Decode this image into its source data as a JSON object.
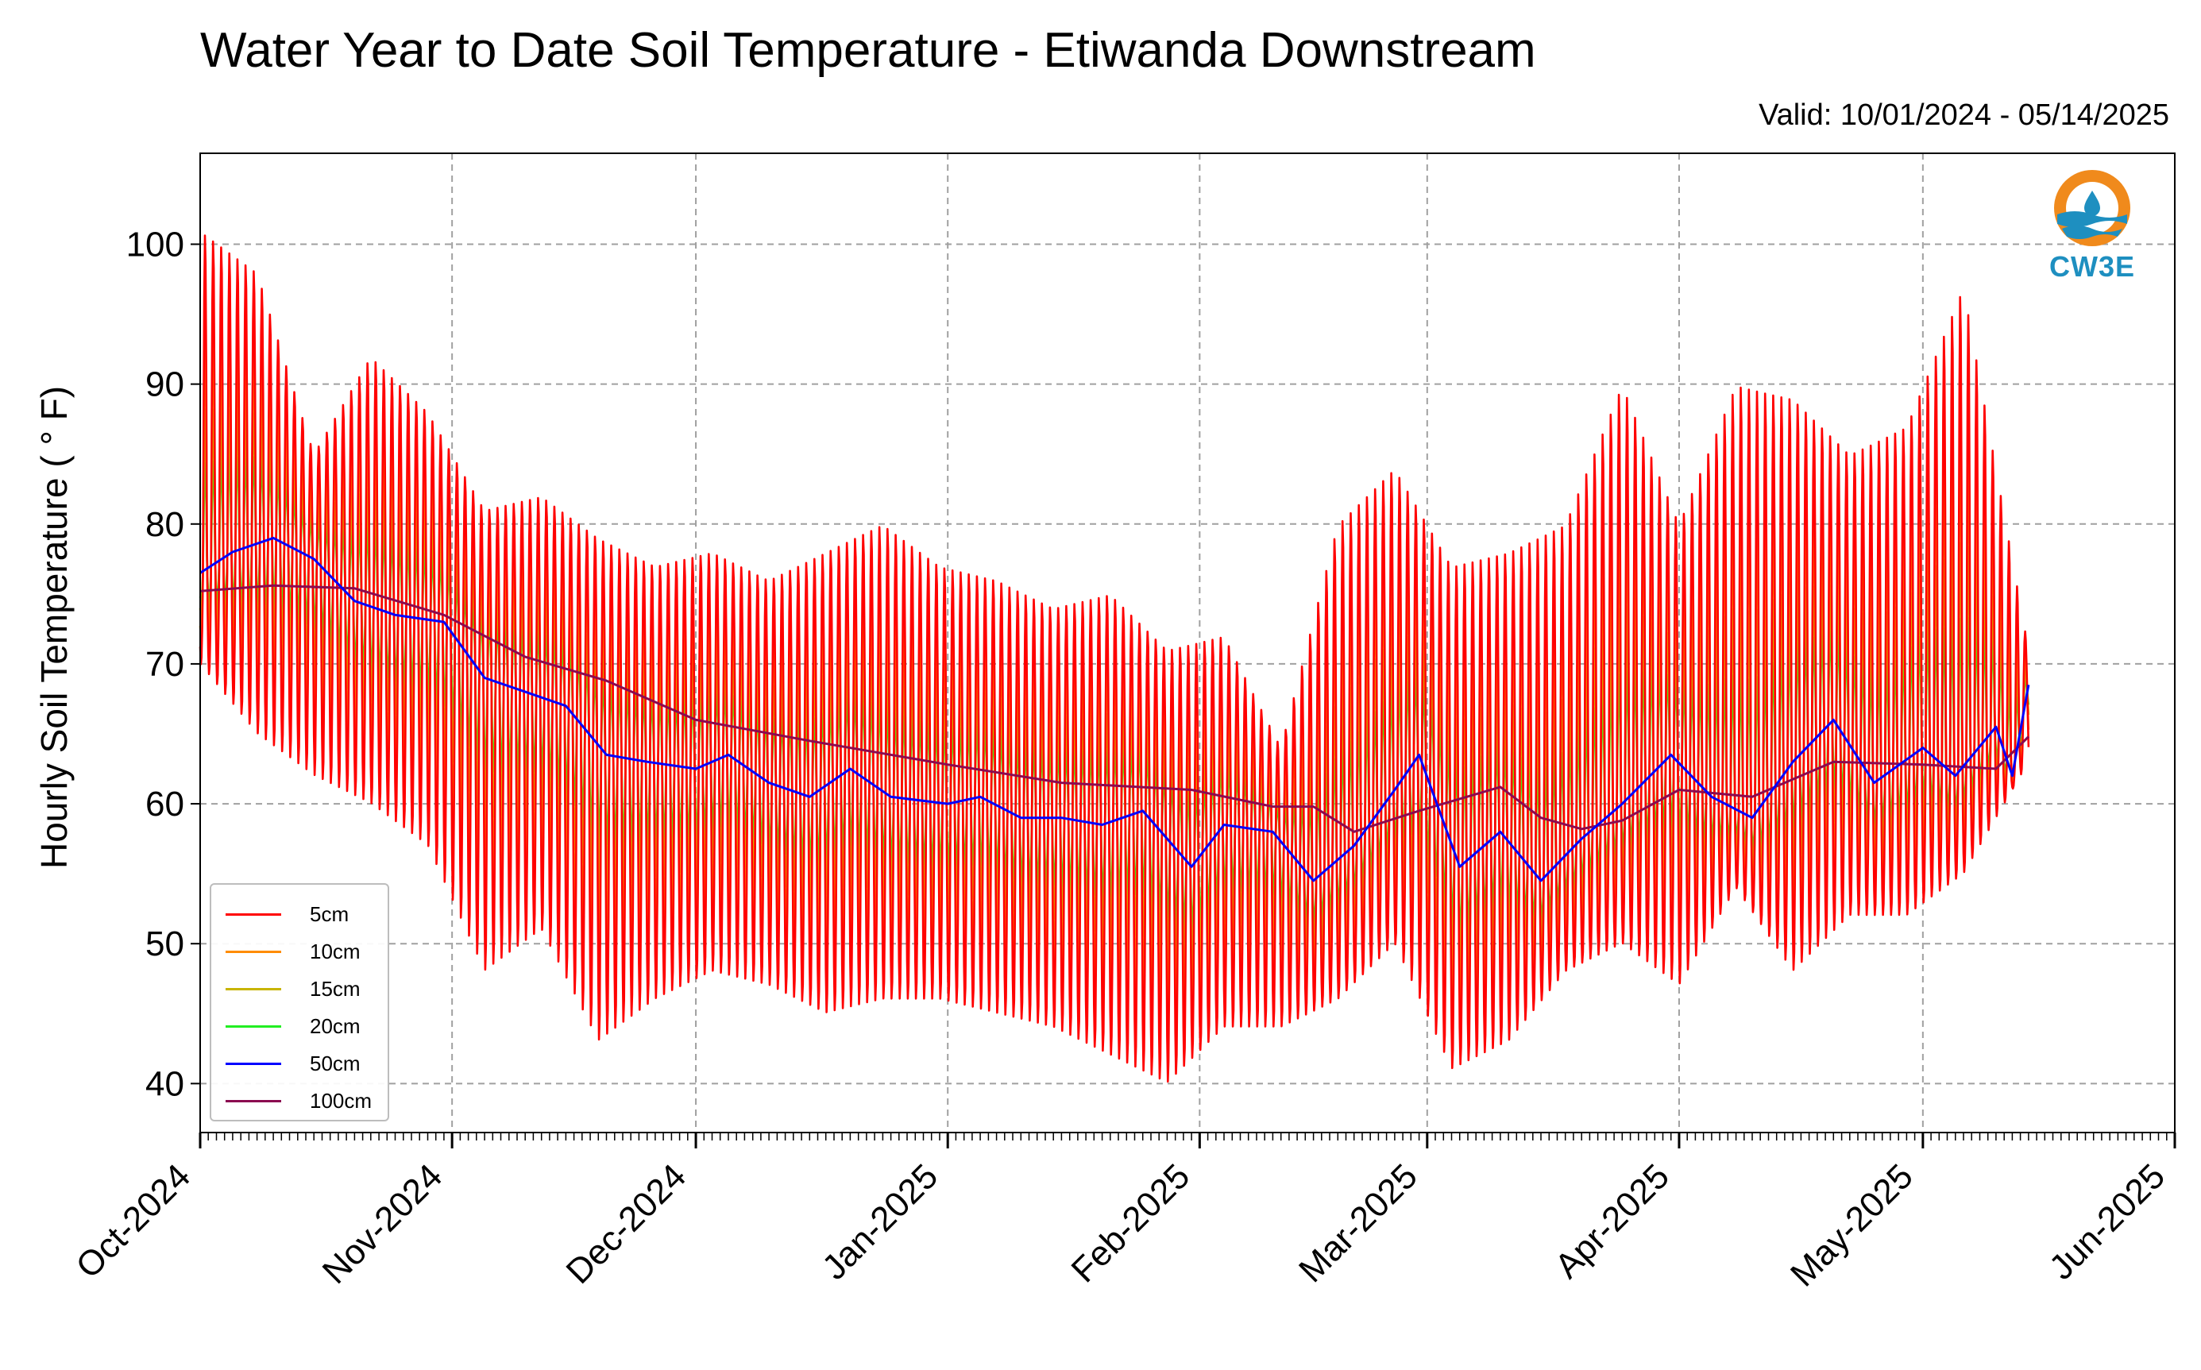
{
  "title": "Water Year to Date Soil Temperature - Etiwanda Downstream",
  "valid_text": "Valid: 10/01/2024 - 05/14/2025",
  "logo": {
    "text": "CW3E",
    "icon": "cw3e-logo-icon"
  },
  "chart_data": {
    "type": "line",
    "title": "Water Year to Date Soil Temperature - Etiwanda Downstream",
    "xlabel": "",
    "ylabel": "Hourly Soil Temperature ( ° F)",
    "x_axis": "date",
    "xlim": [
      "2024-10-01",
      "2025-06-01"
    ],
    "ylim": [
      36.5,
      106.5
    ],
    "yticks": [
      40,
      50,
      60,
      70,
      80,
      90,
      100
    ],
    "xticks": [
      {
        "date": "2024-10-01",
        "label": "Oct-2024"
      },
      {
        "date": "2024-11-01",
        "label": "Nov-2024"
      },
      {
        "date": "2024-12-01",
        "label": "Dec-2024"
      },
      {
        "date": "2025-01-01",
        "label": "Jan-2025"
      },
      {
        "date": "2025-02-01",
        "label": "Feb-2025"
      },
      {
        "date": "2025-03-01",
        "label": "Mar-2025"
      },
      {
        "date": "2025-04-01",
        "label": "Apr-2025"
      },
      {
        "date": "2025-05-01",
        "label": "May-2025"
      },
      {
        "date": "2025-06-01",
        "label": "Jun-2025"
      }
    ],
    "grid": true,
    "legend_position": "lower-left",
    "diurnal_envelope": {
      "dates": [
        "2024-10-01",
        "2024-10-08",
        "2024-10-15",
        "2024-10-22",
        "2024-10-29",
        "2024-11-05",
        "2024-11-12",
        "2024-11-19",
        "2024-11-26",
        "2024-12-03",
        "2024-12-10",
        "2024-12-17",
        "2024-12-24",
        "2024-12-31",
        "2025-01-07",
        "2025-01-14",
        "2025-01-21",
        "2025-01-28",
        "2025-02-04",
        "2025-02-11",
        "2025-02-18",
        "2025-02-25",
        "2025-03-04",
        "2025-03-11",
        "2025-03-18",
        "2025-03-25",
        "2025-04-01",
        "2025-04-08",
        "2025-04-15",
        "2025-04-22",
        "2025-04-29",
        "2025-05-06",
        "2025-05-14"
      ],
      "daily_max_5cm": [
        101,
        98,
        85,
        92,
        88,
        81,
        82,
        79,
        77,
        78,
        76,
        78,
        80,
        77,
        76,
        74,
        75,
        71,
        72,
        64,
        80,
        84,
        77,
        78,
        80,
        90,
        80,
        90,
        89,
        85,
        87,
        97,
        71
      ],
      "daily_min_5cm": [
        70,
        65,
        62,
        60,
        57,
        48,
        51,
        43,
        46,
        48,
        47,
        45,
        46,
        46,
        45,
        44,
        42,
        40,
        44,
        44,
        46,
        50,
        41,
        43,
        48,
        50,
        47,
        54,
        48,
        52,
        52,
        55,
        63
      ]
    },
    "series": [
      {
        "name": "5cm",
        "color": "#ff0000",
        "diurnal_fraction": 1.0
      },
      {
        "name": "10cm",
        "color": "#ff8c00",
        "diurnal_fraction": 0.72
      },
      {
        "name": "15cm",
        "color": "#c8b400",
        "diurnal_fraction": 0.48
      },
      {
        "name": "20cm",
        "color": "#22ee22",
        "diurnal_fraction": 0.32
      },
      {
        "name": "50cm",
        "color": "#0000ff",
        "x": [
          "2024-10-01",
          "2024-10-05",
          "2024-10-10",
          "2024-10-15",
          "2024-10-20",
          "2024-10-25",
          "2024-10-31",
          "2024-11-05",
          "2024-11-10",
          "2024-11-15",
          "2024-11-20",
          "2024-11-25",
          "2024-12-01",
          "2024-12-05",
          "2024-12-10",
          "2024-12-15",
          "2024-12-20",
          "2024-12-25",
          "2025-01-01",
          "2025-01-05",
          "2025-01-10",
          "2025-01-15",
          "2025-01-20",
          "2025-01-25",
          "2025-01-31",
          "2025-02-04",
          "2025-02-10",
          "2025-02-15",
          "2025-02-20",
          "2025-02-25",
          "2025-02-28",
          "2025-03-05",
          "2025-03-10",
          "2025-03-15",
          "2025-03-20",
          "2025-03-25",
          "2025-03-31",
          "2025-04-05",
          "2025-04-10",
          "2025-04-15",
          "2025-04-20",
          "2025-04-25",
          "2025-05-01",
          "2025-05-05",
          "2025-05-10",
          "2025-05-12",
          "2025-05-14"
        ],
        "y": [
          76.5,
          78.0,
          79.0,
          77.5,
          74.5,
          73.5,
          73.0,
          69.0,
          68.0,
          67.0,
          63.5,
          63.0,
          62.5,
          63.5,
          61.5,
          60.5,
          62.5,
          60.5,
          60.0,
          60.5,
          59.0,
          59.0,
          58.5,
          59.5,
          55.5,
          58.5,
          58.0,
          54.5,
          57.0,
          61.0,
          63.5,
          55.5,
          58.0,
          54.5,
          57.5,
          60.0,
          63.5,
          60.5,
          59.0,
          63.0,
          66.0,
          61.5,
          64.0,
          62.0,
          65.5,
          62.0,
          68.5
        ]
      },
      {
        "name": "100cm",
        "color": "#8b0a50",
        "x": [
          "2024-10-01",
          "2024-10-10",
          "2024-10-20",
          "2024-10-31",
          "2024-11-10",
          "2024-11-20",
          "2024-12-01",
          "2024-12-15",
          "2025-01-01",
          "2025-01-15",
          "2025-01-31",
          "2025-02-10",
          "2025-02-15",
          "2025-02-20",
          "2025-02-28",
          "2025-03-10",
          "2025-03-15",
          "2025-03-20",
          "2025-03-25",
          "2025-04-01",
          "2025-04-10",
          "2025-04-20",
          "2025-05-01",
          "2025-05-10",
          "2025-05-14"
        ],
        "y": [
          75.2,
          75.6,
          75.4,
          73.5,
          70.5,
          68.8,
          66.0,
          64.5,
          62.8,
          61.5,
          61.0,
          59.8,
          59.8,
          58.0,
          59.5,
          61.2,
          59.0,
          58.2,
          58.8,
          61.0,
          60.5,
          63.0,
          62.8,
          62.5,
          64.8
        ]
      }
    ]
  }
}
